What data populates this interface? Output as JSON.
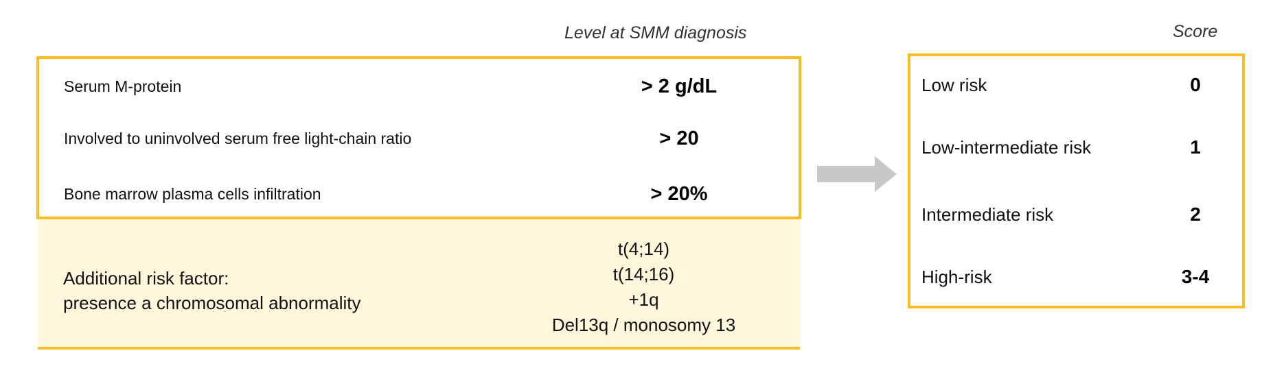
{
  "headers": {
    "level": "Level at SMM diagnosis",
    "score": "Score"
  },
  "criteria": [
    {
      "label": "Serum M-protein",
      "value": "> 2 g/dL"
    },
    {
      "label": "Involved to uninvolved serum free light-chain ratio",
      "value": "> 20"
    },
    {
      "label": "Bone marrow plasma cells infiltration",
      "value": "> 20%"
    }
  ],
  "additional": {
    "label_line1": "Additional risk factor:",
    "label_line2": "presence a chromosomal abnormality",
    "abnormalities": [
      "t(4;14)",
      "t(14;16)",
      "+1q",
      "Del13q / monosomy 13"
    ]
  },
  "risk_scores": [
    {
      "label": "Low risk",
      "score": "0"
    },
    {
      "label": "Low-intermediate risk",
      "score": "1"
    },
    {
      "label": "Intermediate risk",
      "score": "2"
    },
    {
      "label": "High-risk",
      "score": "3-4"
    }
  ],
  "colors": {
    "box_border": "#F5BE21",
    "band_fill": "#FFF6DC",
    "arrow": "#C8C8C8"
  }
}
